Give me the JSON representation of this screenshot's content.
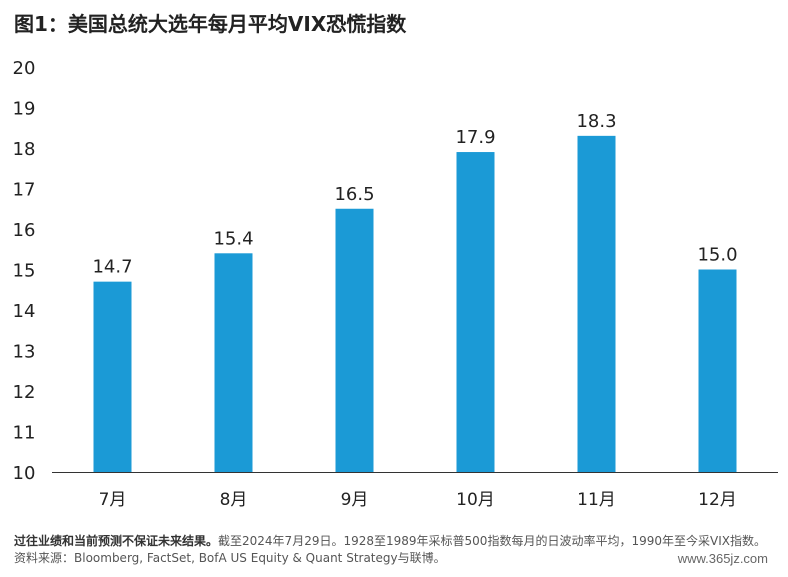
{
  "title": "图1：美国总统大选年每月平均VIX恐慌指数",
  "footnote": {
    "bold": "过往业绩和当前预测不保证未来结果。",
    "text": "截至2024年7月29日。1928至1989年采标普500指数每月的日波动率平均，1990年至今采VIX指数。资料来源：Bloomberg, FactSet, BofA US Equity & Quant Strategy与联博。"
  },
  "watermark": "www.365jz.com",
  "colors": {
    "bar": "#1b9ad6",
    "axis": "#333333",
    "text": "#222222"
  },
  "chart_data": {
    "type": "bar",
    "categories": [
      "7月",
      "8月",
      "9月",
      "10月",
      "11月",
      "12月"
    ],
    "values": [
      14.7,
      15.4,
      16.5,
      17.9,
      18.3,
      15.0
    ],
    "value_labels": [
      "14.7",
      "15.4",
      "16.5",
      "17.9",
      "18.3",
      "15.0"
    ],
    "title": "图1：美国总统大选年每月平均VIX恐慌指数",
    "ylim": [
      10,
      20
    ],
    "yticks": [
      10,
      11,
      12,
      13,
      14,
      15,
      16,
      17,
      18,
      19,
      20
    ],
    "grid": false,
    "legend": "none"
  }
}
